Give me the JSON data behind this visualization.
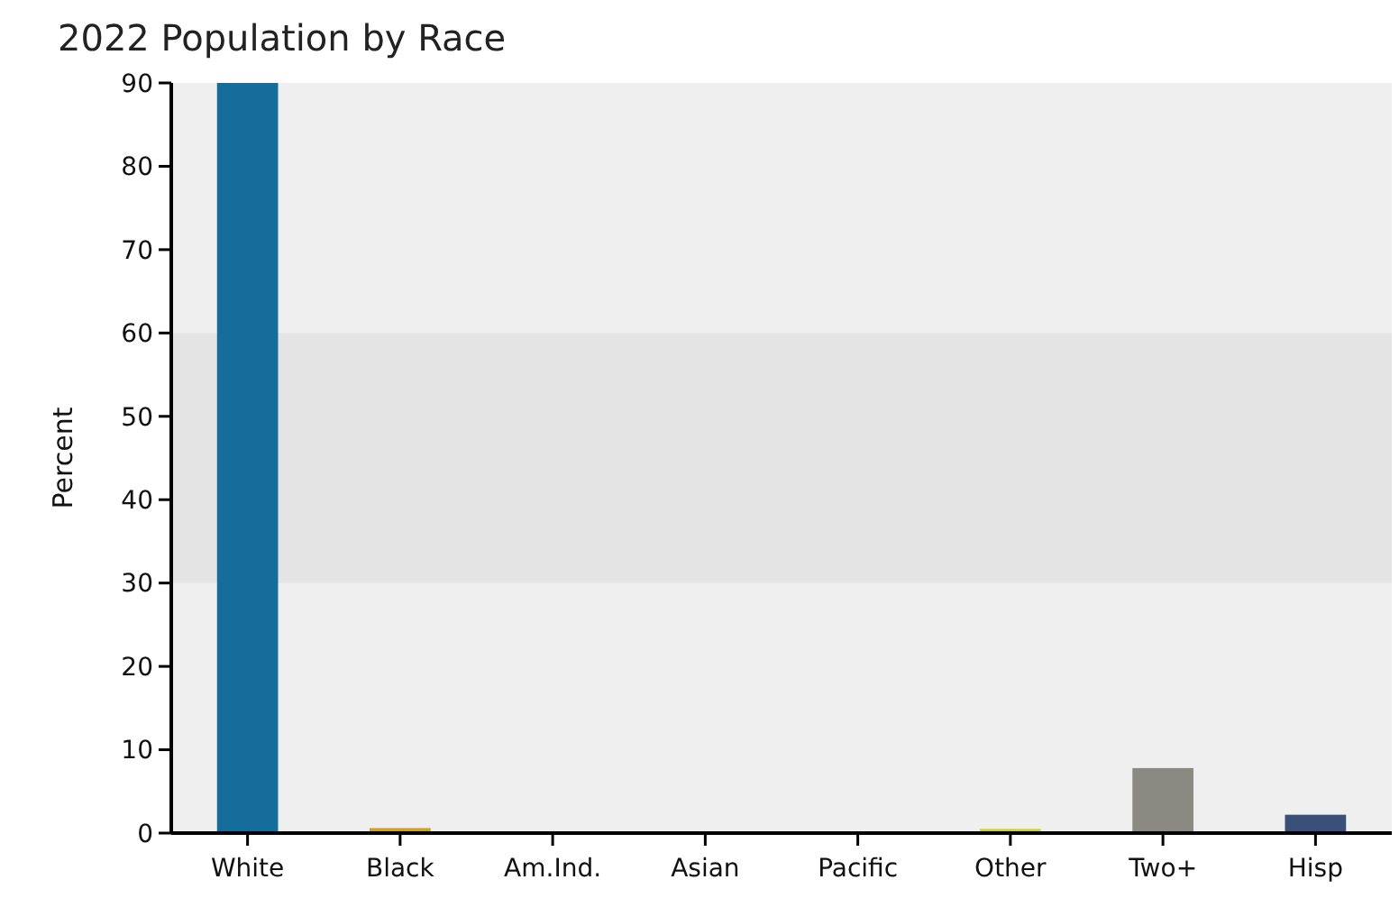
{
  "chart_data": {
    "type": "bar",
    "title": "2022 Population by Race",
    "ylabel": "Percent",
    "categories": [
      "White",
      "Black",
      "Am.Ind.",
      "Asian",
      "Pacific",
      "Other",
      "Two+",
      "Hisp"
    ],
    "values": [
      90,
      0.6,
      0,
      0,
      0,
      0.5,
      7.8,
      2.2
    ],
    "colors": [
      "#156d9b",
      "#c9a227",
      "#b5533c",
      "#6c8f3a",
      "#7a4e8c",
      "#c8d42a",
      "#8a8a82",
      "#3a5078"
    ],
    "ylim": [
      0,
      90
    ],
    "yticks": [
      0,
      10,
      20,
      30,
      40,
      50,
      60,
      70,
      80,
      90
    ],
    "bands": [
      {
        "axis": "y",
        "from": 30,
        "to": 60,
        "color": "#e4e4e4"
      }
    ],
    "grid": false
  }
}
